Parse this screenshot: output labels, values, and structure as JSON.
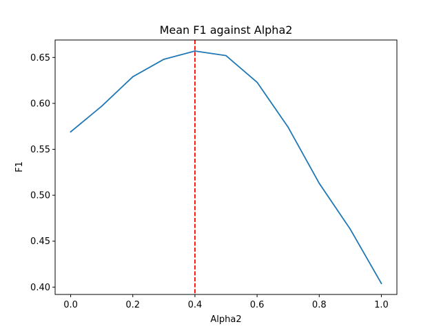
{
  "chart_data": {
    "type": "line",
    "title": "Mean F1 against Alpha2",
    "xlabel": "Alpha2",
    "ylabel": "F1",
    "xlim": [
      -0.05,
      1.05
    ],
    "ylim": [
      0.392,
      0.669
    ],
    "xticks": [
      0.0,
      0.2,
      0.4,
      0.6,
      0.8,
      1.0
    ],
    "xtick_labels": [
      "0.0",
      "0.2",
      "0.4",
      "0.6",
      "0.8",
      "1.0"
    ],
    "yticks": [
      0.4,
      0.45,
      0.5,
      0.55,
      0.6,
      0.65
    ],
    "ytick_labels": [
      "0.40",
      "0.45",
      "0.50",
      "0.55",
      "0.60",
      "0.65"
    ],
    "grid": false,
    "series": [
      {
        "color": "#1f77b4",
        "x": [
          0.0,
          0.1,
          0.2,
          0.3,
          0.4,
          0.5,
          0.6,
          0.7,
          0.8,
          0.9,
          1.0
        ],
        "y": [
          0.569,
          0.597,
          0.629,
          0.648,
          0.657,
          0.652,
          0.623,
          0.574,
          0.513,
          0.463,
          0.404
        ]
      }
    ],
    "vline": {
      "x": 0.4,
      "color": "#ff0000",
      "style": "dashed"
    }
  }
}
